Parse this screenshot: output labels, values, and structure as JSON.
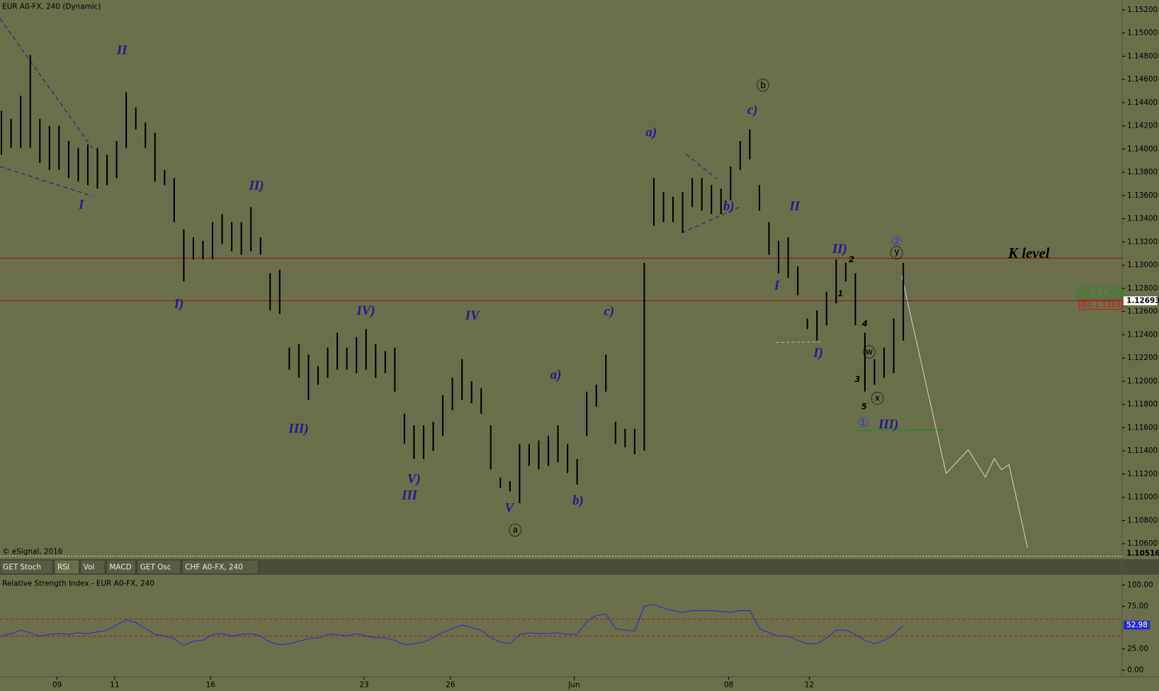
{
  "tabs": [
    "GET Stoch",
    "RSI",
    "Vol",
    "MACD",
    "GET Osc",
    "CHF A0-FX, 240"
  ],
  "chart_data": [
    {
      "type": "hilo",
      "title": "EUR A0-FX, 240 (Dynamic)",
      "copyright": "© eSignal, 2016",
      "color": "#000000",
      "x": [
        0,
        1,
        2,
        3,
        4,
        5,
        6,
        7,
        8,
        9,
        10,
        11,
        12,
        13,
        14,
        15,
        16,
        17,
        18,
        19,
        20,
        21,
        22,
        23,
        24,
        25,
        26,
        27,
        28,
        29,
        30,
        31,
        32,
        33,
        34,
        35,
        36,
        37,
        38,
        39,
        40,
        41,
        42,
        43,
        44,
        45,
        46,
        47,
        48,
        49,
        50,
        51,
        52,
        53,
        54,
        55,
        56,
        57,
        58,
        59,
        60,
        61,
        62,
        63,
        64,
        65,
        66,
        67,
        68,
        69,
        70,
        71,
        72,
        73,
        74,
        75,
        76,
        77,
        78,
        79,
        80,
        81,
        82,
        83,
        84,
        85,
        86,
        87,
        88,
        89,
        90,
        91,
        92,
        93,
        94
      ],
      "high": [
        1.1433,
        1.1426,
        1.1446,
        1.1481,
        1.1426,
        1.142,
        1.142,
        1.1407,
        1.1401,
        1.1404,
        1.1401,
        1.1395,
        1.1407,
        1.1449,
        1.1436,
        1.1423,
        1.1414,
        1.1382,
        1.1375,
        1.1331,
        1.1324,
        1.1321,
        1.1337,
        1.1344,
        1.1337,
        1.1337,
        1.135,
        1.1324,
        1.1293,
        1.1296,
        1.1229,
        1.1232,
        1.1223,
        1.1213,
        1.1229,
        1.1242,
        1.1229,
        1.1238,
        1.1245,
        1.1232,
        1.1226,
        1.1229,
        1.1172,
        1.1162,
        1.1162,
        1.1165,
        1.1188,
        1.1203,
        1.1219,
        1.12,
        1.1194,
        1.1162,
        1.1117,
        1.1114,
        1.1146,
        1.1146,
        1.1149,
        1.1153,
        1.1162,
        1.1146,
        1.1133,
        1.1191,
        1.1197,
        1.1223,
        1.1165,
        1.1159,
        1.1159,
        1.1302,
        1.1375,
        1.1363,
        1.1359,
        1.1363,
        1.1375,
        1.1375,
        1.1369,
        1.1366,
        1.1385,
        1.1407,
        1.1417,
        1.1369,
        1.1337,
        1.1321,
        1.1324,
        1.1299,
        1.1254,
        1.1261,
        1.1277,
        1.1305,
        1.1302,
        1.1293,
        1.1242,
        1.1219,
        1.1229,
        1.1254,
        1.1302
      ],
      "low": [
        1.1395,
        1.1401,
        1.1401,
        1.1401,
        1.1388,
        1.1382,
        1.1382,
        1.1375,
        1.1372,
        1.1369,
        1.1366,
        1.1369,
        1.1375,
        1.1401,
        1.1417,
        1.1401,
        1.1372,
        1.1369,
        1.1337,
        1.1286,
        1.1305,
        1.1305,
        1.1305,
        1.1318,
        1.1312,
        1.1309,
        1.1312,
        1.1309,
        1.1261,
        1.1258,
        1.121,
        1.1203,
        1.1184,
        1.1197,
        1.1203,
        1.121,
        1.121,
        1.1207,
        1.121,
        1.1203,
        1.1207,
        1.1191,
        1.1146,
        1.1133,
        1.1133,
        1.114,
        1.1153,
        1.1175,
        1.1184,
        1.1181,
        1.1172,
        1.1124,
        1.1108,
        1.1105,
        1.1095,
        1.1127,
        1.1124,
        1.1127,
        1.113,
        1.1121,
        1.1111,
        1.1153,
        1.1178,
        1.1191,
        1.1146,
        1.1143,
        1.1137,
        1.114,
        1.1334,
        1.1337,
        1.1337,
        1.1328,
        1.135,
        1.1347,
        1.1344,
        1.1344,
        1.1356,
        1.1382,
        1.1391,
        1.1347,
        1.1309,
        1.1293,
        1.1289,
        1.1274,
        1.1245,
        1.1235,
        1.1248,
        1.1267,
        1.1286,
        1.1248,
        1.1191,
        1.1197,
        1.1203,
        1.1207,
        1.1235
      ],
      "xlim": [
        0,
        116.8
      ],
      "ylim": [
        1.10492,
        1.15283
      ],
      "yticks": [
        {
          "value": 1.106,
          "label": "1.10600"
        },
        {
          "value": 1.108,
          "label": "1.10800"
        },
        {
          "value": 1.11,
          "label": "1.11000"
        },
        {
          "value": 1.112,
          "label": "1.11200"
        },
        {
          "value": 1.114,
          "label": "1.11400"
        },
        {
          "value": 1.116,
          "label": "1.11600"
        },
        {
          "value": 1.118,
          "label": "1.11800"
        },
        {
          "value": 1.12,
          "label": "1.12000"
        },
        {
          "value": 1.122,
          "label": "1.12200"
        },
        {
          "value": 1.124,
          "label": "1.12400"
        },
        {
          "value": 1.126,
          "label": "1.12600"
        },
        {
          "value": 1.128,
          "label": "1.12800"
        },
        {
          "value": 1.13,
          "label": "1.13000"
        },
        {
          "value": 1.132,
          "label": "1.13200"
        },
        {
          "value": 1.134,
          "label": "1.13400"
        },
        {
          "value": 1.136,
          "label": "1.13600"
        },
        {
          "value": 1.138,
          "label": "1.13800"
        },
        {
          "value": 1.14,
          "label": "1.14000"
        },
        {
          "value": 1.142,
          "label": "1.14200"
        },
        {
          "value": 1.144,
          "label": "1.14400"
        },
        {
          "value": 1.146,
          "label": "1.14600"
        },
        {
          "value": 1.148,
          "label": "1.14800"
        },
        {
          "value": 1.15,
          "label": "1.15000"
        },
        {
          "value": 1.152,
          "label": "1.15200"
        }
      ],
      "hlines": [
        {
          "value": 1.1306,
          "color": "#8b1a1a"
        },
        {
          "value": 1.12693,
          "color": "#8b1a1a"
        }
      ],
      "price_tags": [
        {
          "value": 1.12693,
          "label": "1.12693"
        },
        {
          "value": 1.10516,
          "label": "1.10516"
        }
      ],
      "ask": "Ask 1.12698",
      "bid": "Bid 1.12693",
      "annotations": [
        "II",
        "I",
        "II)",
        "I)",
        "III)",
        "IV)",
        "IV",
        "V)",
        "III",
        "V",
        "a)",
        "b)",
        "c)",
        "a)",
        "b)",
        "c)",
        "II",
        "I",
        "II)",
        "I)",
        "III)",
        "K level",
        "1",
        "2",
        "4",
        "3",
        "5",
        "ⓐ",
        "ⓑ",
        "①",
        "②",
        "ⓨ",
        "ⓦ",
        "ⓧ"
      ]
    },
    {
      "type": "line",
      "title": "Relative Strength Index - EUR A0-FX, 240",
      "color": "#2a2ad0",
      "x": [
        0,
        1,
        2,
        3,
        4,
        5,
        6,
        7,
        8,
        9,
        10,
        11,
        12,
        13,
        14,
        15,
        16,
        17,
        18,
        19,
        20,
        21,
        22,
        23,
        24,
        25,
        26,
        27,
        28,
        29,
        30,
        31,
        32,
        33,
        34,
        35,
        36,
        37,
        38,
        39,
        40,
        41,
        42,
        43,
        44,
        45,
        46,
        47,
        48,
        49,
        50,
        51,
        52,
        53,
        54,
        55,
        56,
        57,
        58,
        59,
        60,
        61,
        62,
        63,
        64,
        65,
        66,
        67,
        68,
        69,
        70,
        71,
        72,
        73,
        74,
        75,
        76,
        77,
        78,
        79,
        80,
        81,
        82,
        83,
        84,
        85,
        86,
        87,
        88,
        89,
        90,
        91,
        92,
        93,
        94
      ],
      "values": [
        40,
        43,
        47,
        44,
        40,
        42,
        43,
        42,
        44,
        43,
        45,
        47,
        53,
        59,
        56,
        49,
        42,
        40,
        37,
        29,
        34,
        35,
        42,
        43,
        40,
        42,
        43,
        40,
        33,
        30,
        31,
        34,
        37,
        38,
        42,
        42,
        40,
        43,
        40,
        38,
        38,
        35,
        30,
        31,
        33,
        38,
        44,
        49,
        53,
        50,
        47,
        38,
        33,
        31,
        42,
        44,
        43,
        43,
        44,
        42,
        42,
        57,
        64,
        66,
        49,
        47,
        46,
        75,
        77,
        73,
        70,
        68,
        70,
        70,
        70,
        69,
        68,
        70,
        70,
        49,
        44,
        40,
        40,
        35,
        31,
        31,
        38,
        47,
        47,
        42,
        35,
        31,
        35,
        42,
        52.98
      ],
      "last_label": "52.98",
      "xlim": [
        0,
        116.8
      ],
      "ylim": [
        -7.8,
        111.3
      ],
      "yticks": [
        {
          "value": 0,
          "label": "0.00"
        },
        {
          "value": 25,
          "label": "25.00"
        },
        {
          "value": 75,
          "label": "75.00"
        },
        {
          "value": 100,
          "label": "100.00"
        }
      ],
      "hlines": [
        {
          "value": 60,
          "color": "#a02020"
        },
        {
          "value": 40,
          "color": "#a02020"
        }
      ],
      "xticks": [
        {
          "value": 5.8,
          "label": "09"
        },
        {
          "value": 11.8,
          "label": "11"
        },
        {
          "value": 21.8,
          "label": "16"
        },
        {
          "value": 37.8,
          "label": "23"
        },
        {
          "value": 46.8,
          "label": "26"
        },
        {
          "value": 59.7,
          "label": "Jun"
        },
        {
          "value": 75.8,
          "label": "08"
        },
        {
          "value": 84.2,
          "label": "12"
        }
      ]
    }
  ]
}
